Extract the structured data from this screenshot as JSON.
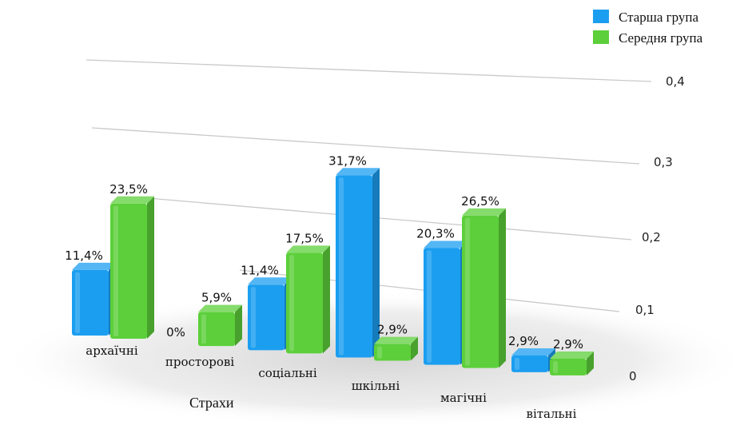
{
  "chart_data": {
    "type": "bar",
    "categories": [
      "архаїчні",
      "просторові",
      "соціальні",
      "шкільні",
      "магічні",
      "вітальні"
    ],
    "series": [
      {
        "name": "Старша група",
        "values": [
          0.114,
          0,
          0.114,
          0.317,
          0.203,
          0.029
        ],
        "labels": [
          "11,4%",
          "0%",
          "11,4%",
          "31,7%",
          "20,3%",
          "2,9%"
        ],
        "color": "#1b9ef0"
      },
      {
        "name": "Середня група",
        "values": [
          0.235,
          0.059,
          0.175,
          0.029,
          0.265,
          0.029
        ],
        "labels": [
          "23,5%",
          "5,9%",
          "17,5%",
          "2,9%",
          "26,5%",
          "2,9%"
        ],
        "color": "#5ccf3a"
      }
    ],
    "xlabel": "Страхи",
    "ylim": [
      0,
      0.4
    ],
    "yticks": [
      "0",
      "0,1",
      "0,2",
      "0,3",
      "0,4"
    ],
    "grid": true,
    "legend_position": "top-right",
    "style": "3d-perspective"
  }
}
